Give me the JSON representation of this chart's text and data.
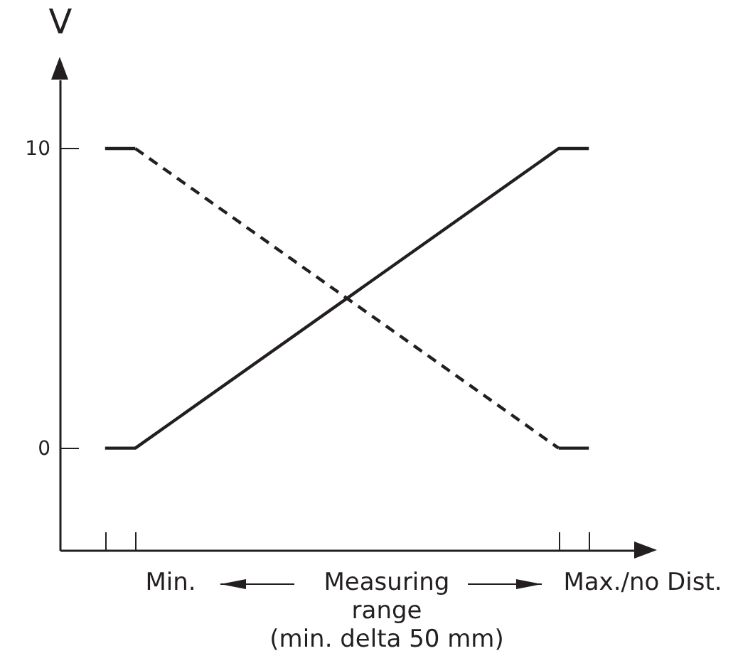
{
  "chart_data": {
    "type": "line",
    "ylabel": "V",
    "categories": [
      null,
      null,
      null,
      null,
      null,
      null,
      null,
      null,
      null,
      null,
      null,
      null,
      null,
      null,
      null,
      null,
      null,
      null,
      null
    ],
    "ylim": [
      -3.4,
      12.3
    ],
    "yticks": [
      0,
      10
    ],
    "tick_labels": "y",
    "grid": false,
    "series": [
      {
        "color": "#231f20",
        "line_style": "solid",
        "values": [
          null,
          0,
          0,
          null,
          null,
          null,
          null,
          null,
          null,
          null,
          null,
          null,
          null,
          null,
          null,
          null,
          10,
          10,
          null
        ]
      },
      {
        "color": "#231f20",
        "line_style": "solid",
        "values": [
          null,
          10,
          10,
          null,
          null,
          null,
          null,
          null,
          null,
          null,
          null,
          null,
          null,
          null,
          null,
          null,
          null,
          null,
          null
        ]
      },
      {
        "color": "#231f20",
        "line_style": "dashed",
        "values": [
          null,
          null,
          10,
          null,
          null,
          null,
          null,
          null,
          null,
          null,
          null,
          null,
          null,
          null,
          null,
          null,
          0,
          null,
          null
        ]
      },
      {
        "color": "#231f20",
        "line_style": "solid",
        "values": [
          null,
          null,
          null,
          null,
          null,
          null,
          null,
          null,
          null,
          null,
          null,
          null,
          null,
          null,
          null,
          null,
          0,
          0,
          null
        ]
      }
    ],
    "annotations": [
      "Min.",
      "Measuring\nrange\n(min. delta 50 mm)",
      "Max./no Dist."
    ]
  }
}
